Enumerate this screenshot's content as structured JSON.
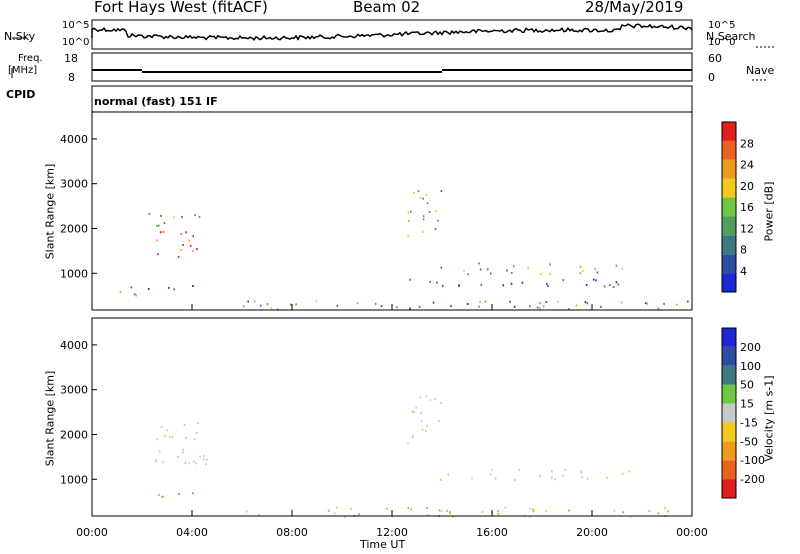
{
  "header": {
    "station": "Fort Hays West (fitACF)",
    "beam": "Beam 02",
    "date": "28/May/2019"
  },
  "strips": {
    "nsky_label": "N.Sky",
    "nsearch_label": "N.Search",
    "nsky_ticks": [
      "10^5",
      "10^0"
    ],
    "nsearch_ticks": [
      "10^5",
      "10^0"
    ],
    "freq_label_1": "Freq.",
    "freq_label_2": "[MHz]",
    "freq_ticks": [
      "18",
      "8"
    ],
    "nave_label": "Nave",
    "nave_ticks": [
      "60",
      "0"
    ],
    "cpid_label": "CPID",
    "cpid_text": "normal (fast) 151 IF"
  },
  "colors": {
    "power": [
      "#1e28d2",
      "#2d4ea0",
      "#3c7a82",
      "#4ea05a",
      "#6cc840",
      "#f0c81e",
      "#f09a1e",
      "#e8641e",
      "#e01e1e"
    ],
    "velocity": [
      "#1e28d2",
      "#2d4ea0",
      "#3c7a82",
      "#6cc840",
      "#c8c8c8",
      "#f0c81e",
      "#f09a1e",
      "#e8641e",
      "#e01e1e"
    ]
  },
  "chart_data": [
    {
      "type": "heatmap",
      "title": "Power",
      "xlabel": "Time UT",
      "ylabel": "Slant Range [km]",
      "colorbar_label": "Power [dB]",
      "colorbar_ticks": [
        "4",
        "8",
        "12",
        "16",
        "20",
        "24",
        "28"
      ],
      "x_ticks": [
        "00:00",
        "04:00",
        "08:00",
        "12:00",
        "16:00",
        "20:00",
        "00:00"
      ],
      "y_ticks": [
        "1000",
        "2000",
        "3000",
        "4000"
      ],
      "xlim": [
        0,
        24
      ],
      "ylim": [
        180,
        4600
      ],
      "features": [
        {
          "t": [
            2.5,
            4.6
          ],
          "r": [
            1350,
            1950
          ],
          "level": "high"
        },
        {
          "t": [
            2.2,
            4.6
          ],
          "r": [
            2050,
            2400
          ],
          "level": "medium"
        },
        {
          "t": [
            1.0,
            1.8
          ],
          "r": [
            500,
            1000
          ],
          "level": "medium"
        },
        {
          "t": [
            2.2,
            4.4
          ],
          "r": [
            620,
            800
          ],
          "level": "low"
        },
        {
          "t": [
            12.5,
            14.0
          ],
          "r": [
            1800,
            2900
          ],
          "level": "medium"
        },
        {
          "t": [
            13.8,
            21.5
          ],
          "r": [
            1000,
            1250
          ],
          "level": "medium"
        },
        {
          "t": [
            12.5,
            22.0
          ],
          "r": [
            700,
            900
          ],
          "level": "low"
        },
        {
          "t": [
            6.0,
            24.0
          ],
          "r": [
            180,
            400
          ],
          "level": "mixed"
        }
      ]
    },
    {
      "type": "heatmap",
      "title": "Velocity",
      "xlabel": "Time UT",
      "ylabel": "Slant Range [km]",
      "colorbar_label": "Velocity [m s-1]",
      "colorbar_ticks": [
        "200",
        "100",
        "50",
        "15",
        "-15",
        "-50",
        "-100",
        "-200"
      ],
      "x_ticks": [
        "00:00",
        "04:00",
        "08:00",
        "12:00",
        "16:00",
        "20:00",
        "00:00"
      ],
      "y_ticks": [
        "1000",
        "2000",
        "3000",
        "4000"
      ],
      "xlim": [
        0,
        24
      ],
      "ylim": [
        180,
        4600
      ],
      "features": [
        {
          "t": [
            2.5,
            4.8
          ],
          "r": [
            1350,
            2400
          ],
          "velocity": "ground scatter"
        },
        {
          "t": [
            2.3,
            4.3
          ],
          "r": [
            620,
            800
          ],
          "velocity": "-50 to -100"
        },
        {
          "t": [
            12.5,
            14.0
          ],
          "r": [
            1800,
            2900
          ],
          "velocity": "ground scatter"
        },
        {
          "t": [
            13.8,
            21.5
          ],
          "r": [
            1000,
            1250
          ],
          "velocity": "ground scatter"
        },
        {
          "t": [
            6.0,
            24.0
          ],
          "r": [
            180,
            400
          ],
          "velocity": "mixed -50 to 50"
        }
      ]
    }
  ]
}
